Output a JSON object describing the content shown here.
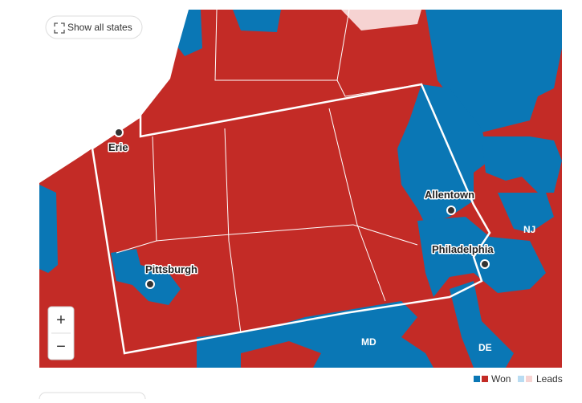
{
  "button": {
    "label": "Show all states"
  },
  "cities": [
    {
      "name": "Erie"
    },
    {
      "name": "Allentown"
    },
    {
      "name": "Pittsburgh"
    },
    {
      "name": "Philadelphia"
    }
  ],
  "state_labels": [
    "NJ",
    "MD",
    "DE"
  ],
  "zoom": {
    "in": "+",
    "out": "−"
  },
  "legend": {
    "items": [
      {
        "label": "Won"
      },
      {
        "label": "Leads"
      }
    ]
  }
}
